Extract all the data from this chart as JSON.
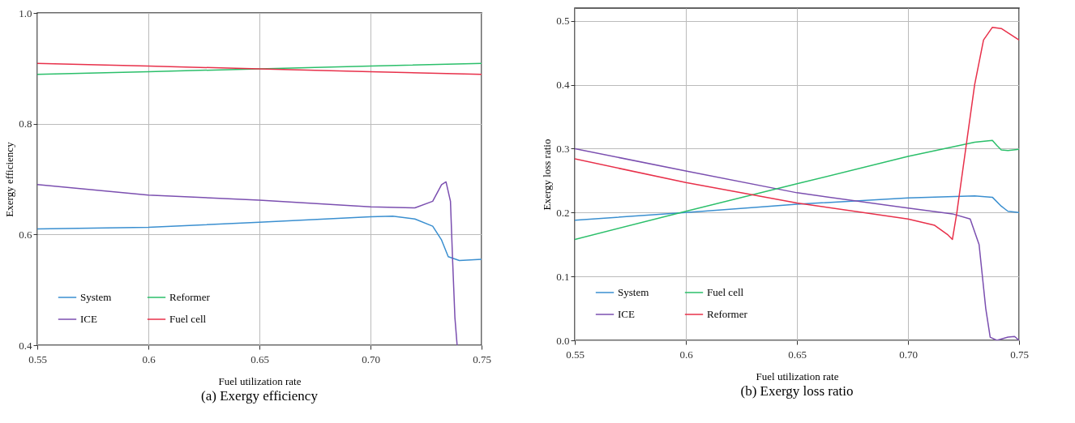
{
  "chart_data": [
    {
      "type": "line",
      "title": "(a) Exergy efficiency",
      "xlabel": "Fuel utilization rate",
      "ylabel": "Exergy efficiency",
      "xlim": [
        0.55,
        0.75
      ],
      "xticks": [
        0.55,
        0.6,
        0.65,
        {
          "value": 0.7,
          "label": "0.70"
        },
        0.75
      ],
      "ylim": [
        0.4,
        1.0
      ],
      "yticks": [
        0.4,
        0.6,
        0.8,
        {
          "value": 1.0,
          "label": "1.0"
        }
      ],
      "grid": true,
      "legend": "bottom left",
      "series": [
        {
          "name": "System",
          "color": "#3a8fd0",
          "x": [
            0.55,
            0.6,
            0.65,
            0.7,
            0.71,
            0.72,
            0.728,
            0.732,
            0.735,
            0.74,
            0.75
          ],
          "values": [
            0.61,
            0.613,
            0.622,
            0.632,
            0.633,
            0.628,
            0.615,
            0.59,
            0.56,
            0.553,
            0.555
          ]
        },
        {
          "name": "ICE",
          "color": "#7b4fb0",
          "x": [
            0.55,
            0.6,
            0.65,
            0.7,
            0.72,
            0.728,
            0.732,
            0.734,
            0.736,
            0.737,
            0.738,
            0.739
          ],
          "values": [
            0.69,
            0.671,
            0.662,
            0.65,
            0.648,
            0.66,
            0.69,
            0.695,
            0.66,
            0.55,
            0.45,
            0.4
          ]
        },
        {
          "name": "Reformer",
          "color": "#2bbf6a",
          "x": [
            0.55,
            0.6,
            0.65,
            0.7,
            0.75
          ],
          "values": [
            0.889,
            0.894,
            0.899,
            0.904,
            0.909
          ]
        },
        {
          "name": "Fuel cell",
          "color": "#e8304a",
          "x": [
            0.55,
            0.6,
            0.65,
            0.7,
            0.75
          ],
          "values": [
            0.909,
            0.904,
            0.899,
            0.894,
            0.889
          ]
        }
      ]
    },
    {
      "type": "line",
      "title": "(b) Exergy loss ratio",
      "xlabel": "Fuel utilization rate",
      "ylabel": "Exergy loss ratio",
      "xlim": [
        0.55,
        0.75
      ],
      "xticks": [
        0.55,
        0.6,
        0.65,
        {
          "value": 0.7,
          "label": "0.70"
        },
        0.75
      ],
      "ylim": [
        0.0,
        0.52
      ],
      "yticks": [
        {
          "value": 0,
          "label": "0.0"
        },
        0.1,
        0.2,
        0.3,
        0.4,
        0.5
      ],
      "grid": true,
      "legend": "bottom left",
      "series": [
        {
          "name": "System",
          "color": "#3a8fd0",
          "x": [
            0.55,
            0.6,
            0.65,
            0.7,
            0.73,
            0.738,
            0.742,
            0.745,
            0.75
          ],
          "values": [
            0.188,
            0.2,
            0.213,
            0.223,
            0.226,
            0.224,
            0.21,
            0.202,
            0.2
          ]
        },
        {
          "name": "ICE",
          "color": "#7b4fb0",
          "x": [
            0.55,
            0.6,
            0.65,
            0.7,
            0.72,
            0.728,
            0.732,
            0.735,
            0.737,
            0.74,
            0.745,
            0.748,
            0.75
          ],
          "values": [
            0.3,
            0.265,
            0.231,
            0.207,
            0.198,
            0.19,
            0.15,
            0.05,
            0.005,
            0.0,
            0.005,
            0.006,
            0.0
          ]
        },
        {
          "name": "Fuel cell",
          "color": "#2bbf6a",
          "x": [
            0.55,
            0.6,
            0.65,
            0.7,
            0.73,
            0.738,
            0.74,
            0.742,
            0.745,
            0.75
          ],
          "values": [
            0.158,
            0.202,
            0.245,
            0.288,
            0.31,
            0.313,
            0.305,
            0.298,
            0.297,
            0.299
          ]
        },
        {
          "name": "Reformer",
          "color": "#e8304a",
          "x": [
            0.55,
            0.6,
            0.65,
            0.7,
            0.712,
            0.718,
            0.72,
            0.722,
            0.726,
            0.73,
            0.734,
            0.738,
            0.742,
            0.75
          ],
          "values": [
            0.284,
            0.247,
            0.215,
            0.19,
            0.18,
            0.165,
            0.158,
            0.2,
            0.3,
            0.4,
            0.47,
            0.49,
            0.488,
            0.47
          ]
        }
      ]
    }
  ]
}
